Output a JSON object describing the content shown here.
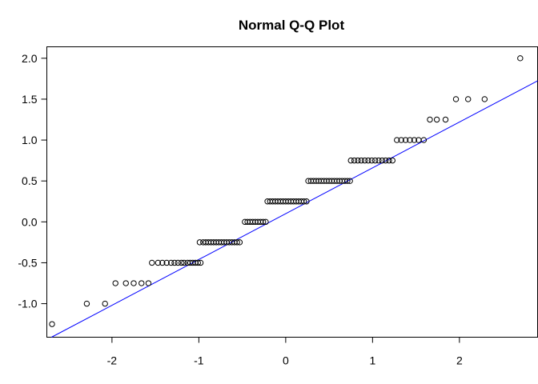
{
  "chart_data": {
    "type": "scatter",
    "title": "Normal Q-Q Plot",
    "xlabel": "",
    "ylabel": "",
    "xlim": [
      -2.75,
      2.9
    ],
    "ylim": [
      -1.41,
      2.14
    ],
    "x_ticks": [
      -2,
      -1,
      0,
      1,
      2
    ],
    "y_ticks": [
      -1.0,
      -0.5,
      0.0,
      0.5,
      1.0,
      1.5,
      2.0
    ],
    "x_tick_labels": [
      "-2",
      "-1",
      "0",
      "1",
      "2"
    ],
    "y_tick_labels": [
      "-1.0",
      "-0.5",
      "0.0",
      "0.5",
      "1.0",
      "1.5",
      "2.0"
    ],
    "grid": false,
    "point_color": "#000000",
    "line_color": "#0000ff",
    "ref_line": {
      "intercept": 0.1,
      "slope": 0.56
    },
    "series": [
      {
        "groups": [
          {
            "y": -1.25,
            "x": [
              -2.69
            ]
          },
          {
            "y": -1.0,
            "x": [
              -2.29,
              -2.08
            ]
          },
          {
            "y": -0.75,
            "x": [
              -1.96,
              -1.84,
              -1.75,
              -1.66,
              -1.58
            ]
          },
          {
            "y": -0.5,
            "x": [
              -1.54,
              -1.47,
              -1.42,
              -1.37,
              -1.32,
              -1.28,
              -1.24,
              -1.2,
              -1.17,
              -1.13,
              -1.1,
              -1.07,
              -1.04,
              -1.01,
              -0.98
            ]
          },
          {
            "y": -0.25,
            "x": [
              -0.99,
              -0.95,
              -0.92,
              -0.89,
              -0.86,
              -0.83,
              -0.8,
              -0.77,
              -0.74,
              -0.71,
              -0.68,
              -0.65,
              -0.62,
              -0.59,
              -0.56,
              -0.53
            ]
          },
          {
            "y": 0.0,
            "x": [
              -0.47,
              -0.44,
              -0.41,
              -0.38,
              -0.35,
              -0.32,
              -0.29,
              -0.26,
              -0.23
            ]
          },
          {
            "y": 0.25,
            "x": [
              -0.21,
              -0.18,
              -0.15,
              -0.12,
              -0.09,
              -0.06,
              -0.03,
              0.0,
              0.03,
              0.06,
              0.09,
              0.12,
              0.15,
              0.18,
              0.21,
              0.24
            ]
          },
          {
            "y": 0.5,
            "x": [
              0.26,
              0.29,
              0.32,
              0.35,
              0.38,
              0.41,
              0.44,
              0.47,
              0.5,
              0.53,
              0.56,
              0.59,
              0.62,
              0.65,
              0.68,
              0.71,
              0.74
            ]
          },
          {
            "y": 0.75,
            "x": [
              0.75,
              0.79,
              0.83,
              0.87,
              0.91,
              0.95,
              0.99,
              1.03,
              1.07,
              1.11,
              1.15,
              1.19,
              1.23
            ]
          },
          {
            "y": 1.0,
            "x": [
              1.28,
              1.33,
              1.38,
              1.43,
              1.48,
              1.53,
              1.59
            ]
          },
          {
            "y": 1.25,
            "x": [
              1.66,
              1.74,
              1.84
            ]
          },
          {
            "y": 1.5,
            "x": [
              1.96,
              2.1,
              2.29
            ]
          },
          {
            "y": 2.0,
            "x": [
              2.7
            ]
          }
        ]
      }
    ]
  }
}
